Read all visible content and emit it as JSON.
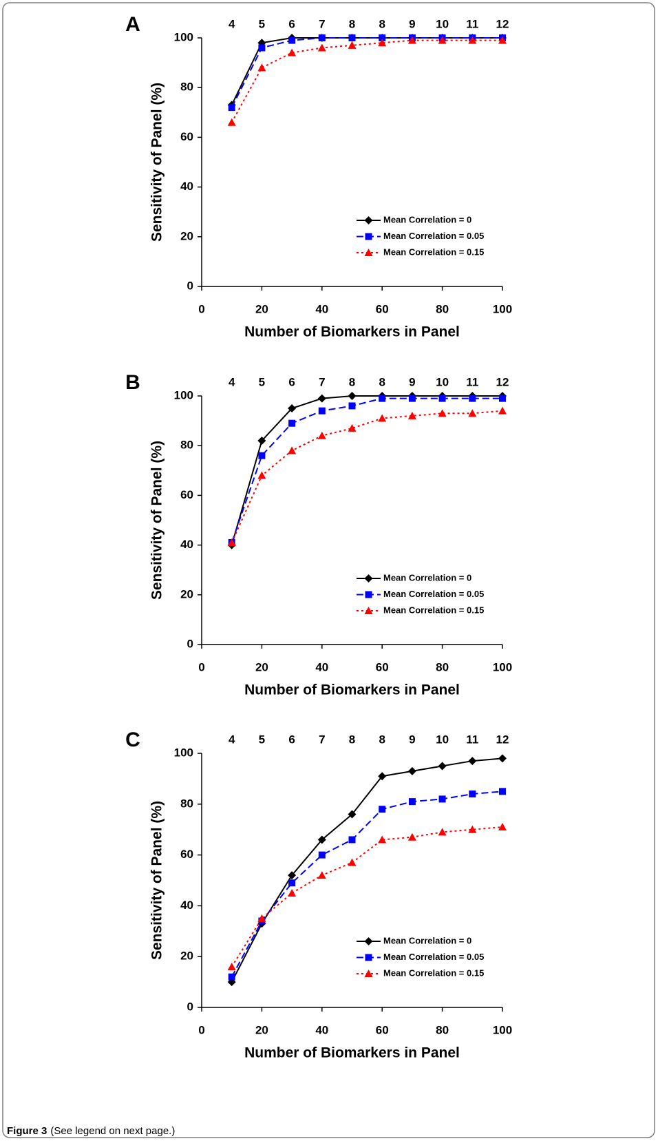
{
  "chart_data": [
    {
      "type": "line",
      "label": "A",
      "xlabel": "Number of Biomarkers in Panel",
      "ylabel": "Sensitivity of Panel (%)",
      "x": [
        10,
        20,
        30,
        40,
        50,
        60,
        70,
        80,
        90,
        100
      ],
      "top_labels": [
        "4",
        "5",
        "6",
        "7",
        "8",
        "8",
        "9",
        "10",
        "11",
        "12"
      ],
      "xlim": [
        0,
        100
      ],
      "xticks": [
        0,
        20,
        40,
        60,
        80,
        100
      ],
      "ylim": [
        0,
        100
      ],
      "yticks": [
        0,
        20,
        40,
        60,
        80,
        100
      ],
      "series": [
        {
          "name": "Mean Correlation = 0",
          "color": "#000000",
          "marker": "diamond",
          "dash": "solid",
          "values": [
            73,
            98,
            100,
            100,
            100,
            100,
            100,
            100,
            100,
            100
          ]
        },
        {
          "name": "Mean Correlation = 0.05",
          "color": "#0000ff",
          "marker": "square",
          "dash": "dashed",
          "values": [
            72,
            96,
            99,
            100,
            100,
            100,
            100,
            100,
            100,
            100
          ]
        },
        {
          "name": "Mean Correlation = 0.15",
          "color": "#ff0000",
          "marker": "triangle",
          "dash": "dotted",
          "values": [
            66,
            88,
            94,
            96,
            97,
            98,
            99,
            99,
            99,
            99
          ]
        }
      ]
    },
    {
      "type": "line",
      "label": "B",
      "xlabel": "Number of Biomarkers in Panel",
      "ylabel": "Sensitivity of Panel (%)",
      "x": [
        10,
        20,
        30,
        40,
        50,
        60,
        70,
        80,
        90,
        100
      ],
      "top_labels": [
        "4",
        "5",
        "6",
        "7",
        "8",
        "8",
        "9",
        "10",
        "11",
        "12"
      ],
      "xlim": [
        0,
        100
      ],
      "xticks": [
        0,
        20,
        40,
        60,
        80,
        100
      ],
      "ylim": [
        0,
        100
      ],
      "yticks": [
        0,
        20,
        40,
        60,
        80,
        100
      ],
      "series": [
        {
          "name": "Mean Correlation = 0",
          "color": "#000000",
          "marker": "diamond",
          "dash": "solid",
          "values": [
            40,
            82,
            95,
            99,
            100,
            100,
            100,
            100,
            100,
            100
          ]
        },
        {
          "name": "Mean Correlation = 0.05",
          "color": "#0000ff",
          "marker": "square",
          "dash": "dashed",
          "values": [
            41,
            76,
            89,
            94,
            96,
            99,
            99,
            99,
            99,
            99
          ]
        },
        {
          "name": "Mean Correlation = 0.15",
          "color": "#ff0000",
          "marker": "triangle",
          "dash": "dotted",
          "values": [
            41,
            68,
            78,
            84,
            87,
            91,
            92,
            93,
            93,
            94
          ]
        }
      ]
    },
    {
      "type": "line",
      "label": "C",
      "xlabel": "Number of Biomarkers in Panel",
      "ylabel": "Sensitivity of Panel (%)",
      "x": [
        10,
        20,
        30,
        40,
        50,
        60,
        70,
        80,
        90,
        100
      ],
      "top_labels": [
        "4",
        "5",
        "6",
        "7",
        "8",
        "8",
        "9",
        "10",
        "11",
        "12"
      ],
      "xlim": [
        0,
        100
      ],
      "xticks": [
        0,
        20,
        40,
        60,
        80,
        100
      ],
      "ylim": [
        0,
        100
      ],
      "yticks": [
        0,
        20,
        40,
        60,
        80,
        100
      ],
      "series": [
        {
          "name": "Mean Correlation = 0",
          "color": "#000000",
          "marker": "diamond",
          "dash": "solid",
          "values": [
            10,
            33,
            52,
            66,
            76,
            91,
            93,
            95,
            97,
            98
          ]
        },
        {
          "name": "Mean Correlation = 0.05",
          "color": "#0000ff",
          "marker": "square",
          "dash": "dashed",
          "values": [
            12,
            34,
            49,
            60,
            66,
            78,
            81,
            82,
            84,
            85
          ]
        },
        {
          "name": "Mean Correlation = 0.15",
          "color": "#ff0000",
          "marker": "triangle",
          "dash": "dotted",
          "values": [
            16,
            35,
            45,
            52,
            57,
            66,
            67,
            69,
            70,
            71
          ]
        }
      ]
    }
  ],
  "caption": {
    "label": "Figure 3",
    "text": "(See legend on next page.)"
  }
}
